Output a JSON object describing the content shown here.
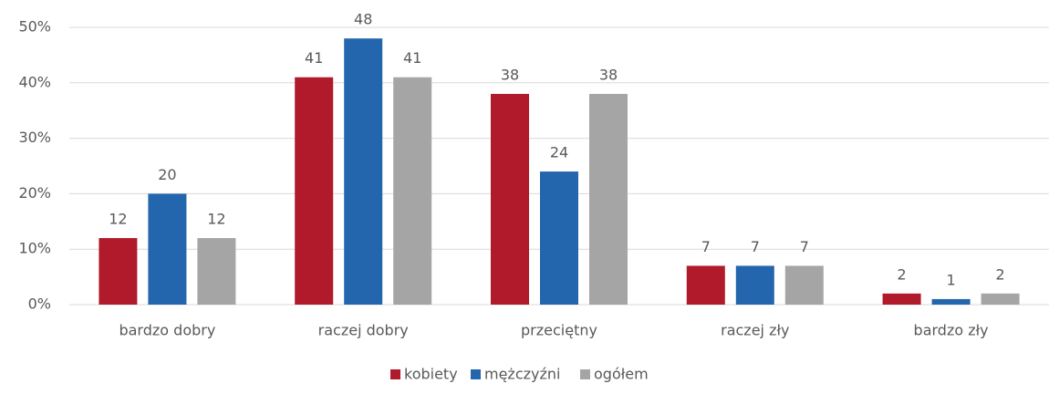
{
  "chart_data": {
    "type": "bar",
    "categories": [
      "bardzo dobry",
      "raczej dobry",
      "przeciętny",
      "raczej zły",
      "bardzo zły"
    ],
    "series": [
      {
        "name": "kobiety",
        "color": "#b01a2a",
        "values": [
          12,
          41,
          38,
          7,
          2
        ]
      },
      {
        "name": "mężczyźni",
        "color": "#2366ad",
        "values": [
          20,
          48,
          24,
          7,
          1
        ]
      },
      {
        "name": "ogółem",
        "color": "#a5a5a5",
        "values": [
          12,
          41,
          38,
          7,
          2
        ]
      }
    ],
    "ylim": [
      0,
      50
    ],
    "yticks": [
      {
        "value": 0,
        "label": "0%"
      },
      {
        "value": 10,
        "label": "10%"
      },
      {
        "value": 20,
        "label": "20%"
      },
      {
        "value": 30,
        "label": "30%"
      },
      {
        "value": 40,
        "label": "40%"
      },
      {
        "value": 50,
        "label": "50%"
      }
    ],
    "grid": true,
    "legend": "bottom"
  }
}
